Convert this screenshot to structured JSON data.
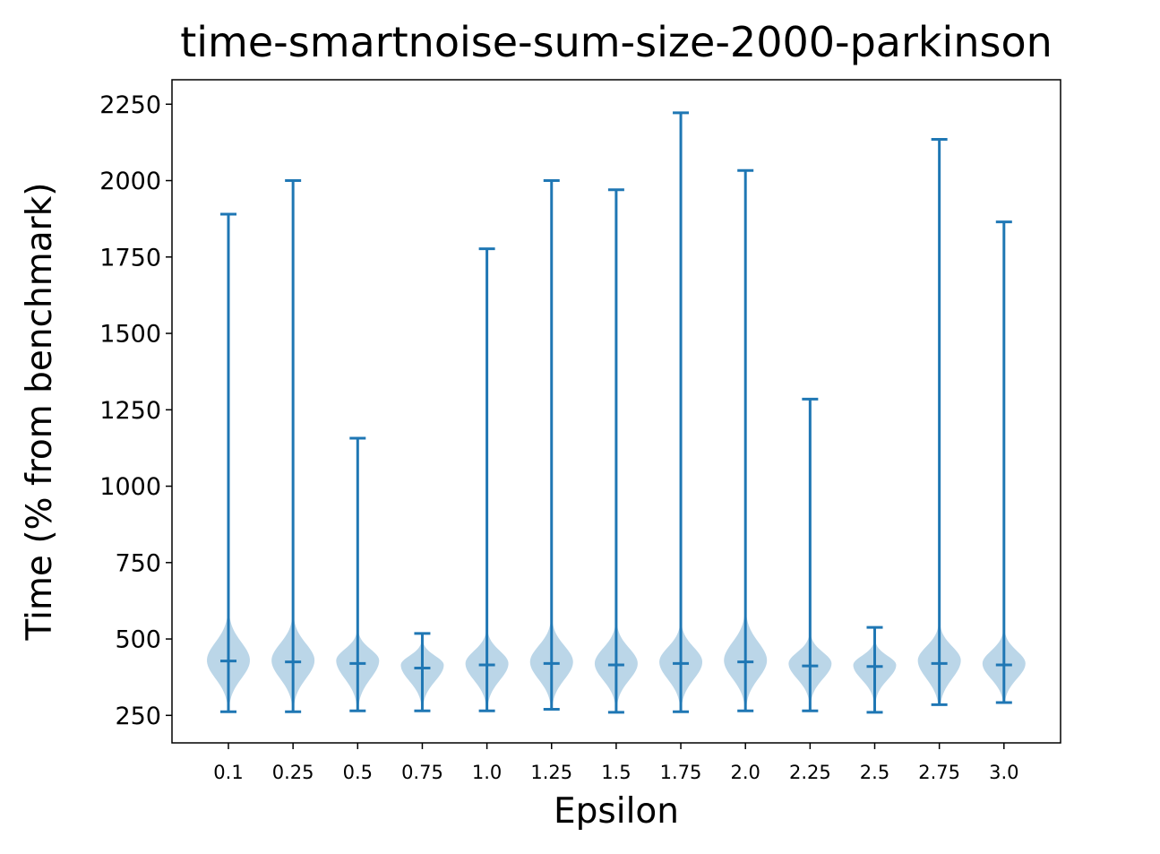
{
  "chart_data": {
    "type": "violin",
    "title": "time-smartnoise-sum-size-2000-parkinson",
    "xlabel": "Epsilon",
    "ylabel": "Time (% from benchmark)",
    "categories": [
      "0.1",
      "0.25",
      "0.5",
      "0.75",
      "1.0",
      "1.25",
      "1.5",
      "1.75",
      "2.0",
      "2.25",
      "2.5",
      "2.75",
      "3.0"
    ],
    "ylim": [
      160,
      2330
    ],
    "yticks": [
      250,
      500,
      750,
      1000,
      1250,
      1500,
      1750,
      2000,
      2250
    ],
    "grid": false,
    "colors": {
      "line": "#1f77b4",
      "body": "#1f77b4",
      "body_opacity": 0.3
    },
    "series": [
      {
        "category": "0.1",
        "min": 262,
        "max": 1890,
        "median": 428,
        "mode": 430,
        "density_low": 300,
        "density_high": 560
      },
      {
        "category": "0.25",
        "min": 262,
        "max": 2000,
        "median": 425,
        "mode": 430,
        "density_low": 300,
        "density_high": 550
      },
      {
        "category": "0.5",
        "min": 265,
        "max": 1157,
        "median": 420,
        "mode": 430,
        "density_low": 300,
        "density_high": 510
      },
      {
        "category": "0.75",
        "min": 265,
        "max": 518,
        "median": 405,
        "mode": 415,
        "density_low": 300,
        "density_high": 480
      },
      {
        "category": "1.0",
        "min": 265,
        "max": 1777,
        "median": 415,
        "mode": 420,
        "density_low": 300,
        "density_high": 510
      },
      {
        "category": "1.25",
        "min": 270,
        "max": 2000,
        "median": 420,
        "mode": 425,
        "density_low": 300,
        "density_high": 540
      },
      {
        "category": "1.5",
        "min": 260,
        "max": 1970,
        "median": 415,
        "mode": 420,
        "density_low": 300,
        "density_high": 530
      },
      {
        "category": "1.75",
        "min": 262,
        "max": 2222,
        "median": 420,
        "mode": 425,
        "density_low": 300,
        "density_high": 530
      },
      {
        "category": "2.0",
        "min": 265,
        "max": 2033,
        "median": 425,
        "mode": 430,
        "density_low": 300,
        "density_high": 560
      },
      {
        "category": "2.25",
        "min": 265,
        "max": 1285,
        "median": 412,
        "mode": 420,
        "density_low": 310,
        "density_high": 500
      },
      {
        "category": "2.5",
        "min": 260,
        "max": 538,
        "median": 410,
        "mode": 415,
        "density_low": 310,
        "density_high": 480
      },
      {
        "category": "2.75",
        "min": 285,
        "max": 2135,
        "median": 420,
        "mode": 430,
        "density_low": 300,
        "density_high": 530
      },
      {
        "category": "3.0",
        "min": 292,
        "max": 1865,
        "median": 415,
        "mode": 420,
        "density_low": 310,
        "density_high": 510
      }
    ]
  }
}
